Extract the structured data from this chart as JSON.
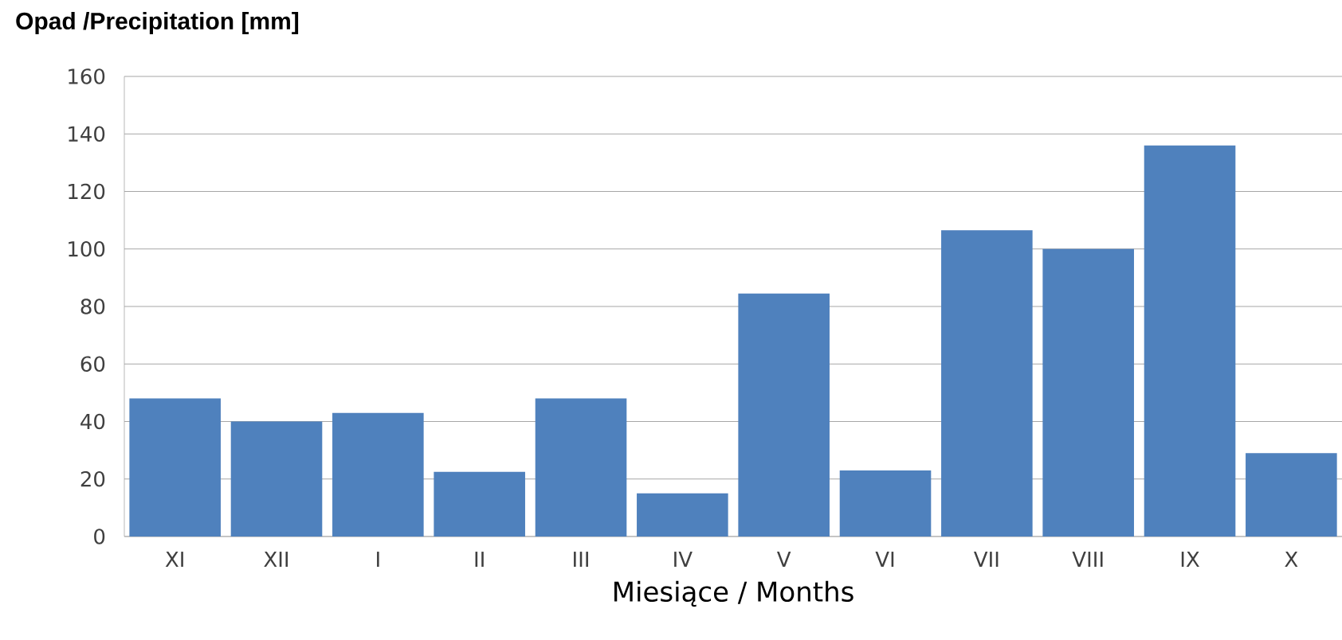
{
  "chart_data": {
    "type": "bar",
    "ylabel": "Opad /Precipitation  [mm]",
    "xlabel": "Miesiące / Months",
    "categories": [
      "XI",
      "XII",
      "I",
      "II",
      "III",
      "IV",
      "V",
      "VI",
      "VII",
      "VIII",
      "IX",
      "X"
    ],
    "values": [
      48,
      40,
      43,
      22.5,
      48,
      15,
      84.5,
      23,
      106.5,
      100,
      136,
      29
    ],
    "color": "#4f81bd",
    "ylim": [
      0,
      160
    ],
    "yticks": [
      0,
      20,
      40,
      60,
      80,
      100,
      120,
      140,
      160
    ],
    "grid": "y"
  }
}
